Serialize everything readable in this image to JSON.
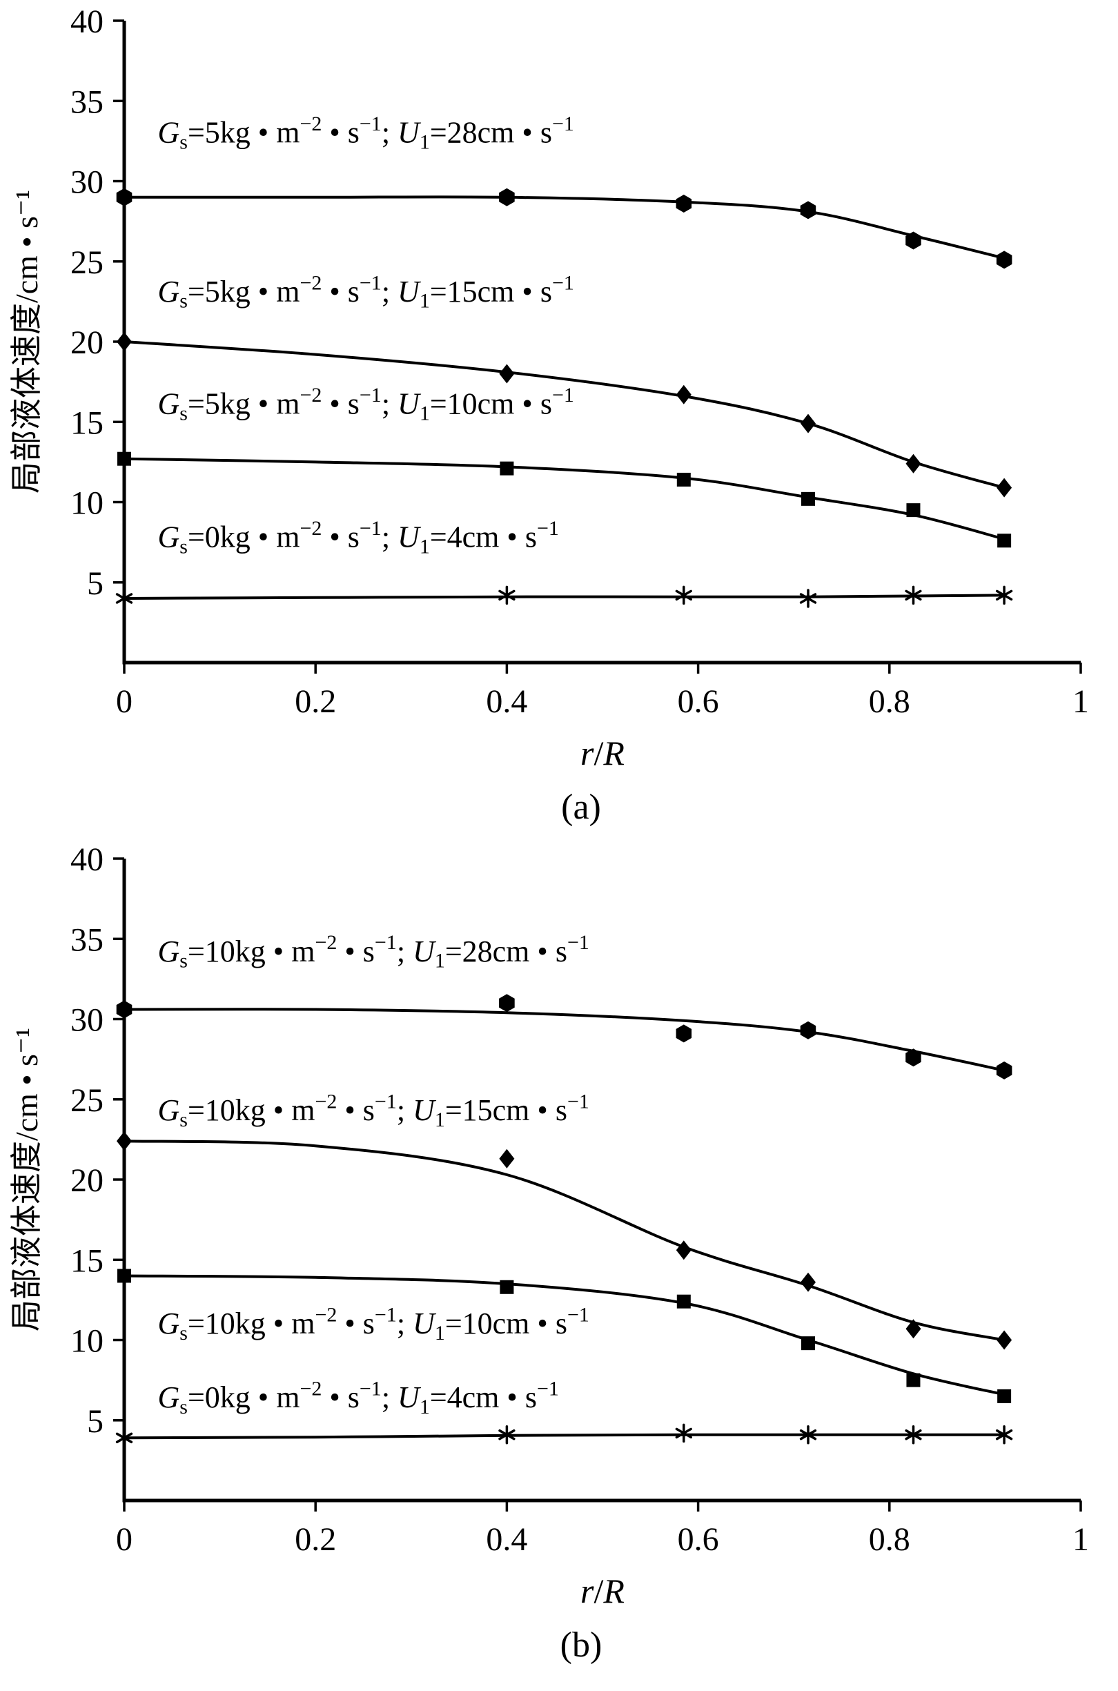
{
  "figure": {
    "background": "#ffffff",
    "ink": "#000000"
  },
  "chart_data": [
    {
      "type": "line",
      "panel": "(a)",
      "xlabel": "r/R",
      "xlabel_parts": [
        [
          "r",
          "i"
        ],
        [
          "/",
          "n"
        ],
        [
          "R",
          "i"
        ]
      ],
      "ylabel": "局部液体速度/cm • s⁻¹",
      "xlim": [
        0,
        1
      ],
      "ylim": [
        0,
        40
      ],
      "xtick_values": [
        0,
        0.2,
        0.4,
        0.6,
        0.8,
        1
      ],
      "xtick_labels": [
        "0",
        "0.2",
        "0.4",
        "0.6",
        "0.8",
        "1"
      ],
      "ytick_values": [
        5,
        10,
        15,
        20,
        25,
        30,
        35,
        40
      ],
      "ytick_labels": [
        "5",
        "10",
        "15",
        "20",
        "25",
        "30",
        "35",
        "40"
      ],
      "x": [
        0,
        0.4,
        0.585,
        0.715,
        0.825,
        0.92
      ],
      "grid": false,
      "legend": "inline-labels",
      "series": [
        {
          "name": "Gₛ=5kg • m⁻² • s⁻¹; U₁=28cm • s⁻¹",
          "marker": "hexagon",
          "values": [
            29.0,
            29.0,
            28.6,
            28.2,
            26.3,
            25.1
          ],
          "curve_x": [
            0,
            0.2,
            0.4,
            0.585,
            0.715,
            0.825,
            0.92
          ],
          "curve_y": [
            29.0,
            29.0,
            29.0,
            28.7,
            28.1,
            26.6,
            25.2
          ],
          "label_x": 0.035,
          "label_y": 32.4,
          "label_parts": [
            [
              "G",
              "i"
            ],
            [
              "s",
              "sub"
            ],
            [
              "=5kg",
              "n"
            ],
            [
              " • ",
              "n"
            ],
            [
              "m",
              "n"
            ],
            [
              "−2",
              "sup"
            ],
            [
              " • ",
              "n"
            ],
            [
              "s",
              "n"
            ],
            [
              "−1",
              "sup"
            ],
            [
              "; ",
              "n"
            ],
            [
              "U",
              "i"
            ],
            [
              "1",
              "sub"
            ],
            [
              "=28cm",
              "n"
            ],
            [
              " • ",
              "n"
            ],
            [
              "s",
              "n"
            ],
            [
              "−1",
              "sup"
            ]
          ]
        },
        {
          "name": "Gₛ=5kg • m⁻² • s⁻¹; U₁=15cm • s⁻¹",
          "marker": "diamond",
          "values": [
            20.0,
            18.0,
            16.7,
            14.9,
            12.4,
            10.9
          ],
          "curve_x": [
            0,
            0.2,
            0.4,
            0.585,
            0.715,
            0.825,
            0.92
          ],
          "curve_y": [
            20.0,
            19.2,
            18.1,
            16.6,
            14.9,
            12.5,
            10.9
          ],
          "label_x": 0.035,
          "label_y": 22.5,
          "label_parts": [
            [
              "G",
              "i"
            ],
            [
              "s",
              "sub"
            ],
            [
              "=5kg",
              "n"
            ],
            [
              " • ",
              "n"
            ],
            [
              "m",
              "n"
            ],
            [
              "−2",
              "sup"
            ],
            [
              " • ",
              "n"
            ],
            [
              "s",
              "n"
            ],
            [
              "−1",
              "sup"
            ],
            [
              "; ",
              "n"
            ],
            [
              "U",
              "i"
            ],
            [
              "1",
              "sub"
            ],
            [
              "=15cm",
              "n"
            ],
            [
              " • ",
              "n"
            ],
            [
              "s",
              "n"
            ],
            [
              "−1",
              "sup"
            ]
          ]
        },
        {
          "name": "Gₛ=5kg • m⁻² • s⁻¹; U₁=10cm • s⁻¹",
          "marker": "square",
          "values": [
            12.7,
            12.1,
            11.4,
            10.2,
            9.5,
            7.6
          ],
          "curve_x": [
            0,
            0.2,
            0.4,
            0.585,
            0.715,
            0.825,
            0.92
          ],
          "curve_y": [
            12.7,
            12.5,
            12.2,
            11.5,
            10.3,
            9.2,
            7.7
          ],
          "label_x": 0.035,
          "label_y": 15.5,
          "label_parts": [
            [
              "G",
              "i"
            ],
            [
              "s",
              "sub"
            ],
            [
              "=5kg",
              "n"
            ],
            [
              " • ",
              "n"
            ],
            [
              "m",
              "n"
            ],
            [
              "−2",
              "sup"
            ],
            [
              " • ",
              "n"
            ],
            [
              "s",
              "n"
            ],
            [
              "−1",
              "sup"
            ],
            [
              "; ",
              "n"
            ],
            [
              "U",
              "i"
            ],
            [
              "1",
              "sub"
            ],
            [
              "=10cm",
              "n"
            ],
            [
              " • ",
              "n"
            ],
            [
              "s",
              "n"
            ],
            [
              "−1",
              "sup"
            ]
          ]
        },
        {
          "name": "Gₛ=0kg • m⁻² • s⁻¹; U₁=4cm • s⁻¹",
          "marker": "asterisk",
          "values": [
            4.0,
            4.2,
            4.2,
            4.0,
            4.2,
            4.2
          ],
          "curve_x": [
            0,
            0.2,
            0.4,
            0.585,
            0.715,
            0.825,
            0.92
          ],
          "curve_y": [
            4.0,
            4.05,
            4.1,
            4.1,
            4.1,
            4.15,
            4.2
          ],
          "label_x": 0.035,
          "label_y": 7.2,
          "label_parts": [
            [
              "G",
              "i"
            ],
            [
              "s",
              "sub"
            ],
            [
              "=0kg",
              "n"
            ],
            [
              " • ",
              "n"
            ],
            [
              "m",
              "n"
            ],
            [
              "−2",
              "sup"
            ],
            [
              " • ",
              "n"
            ],
            [
              "s",
              "n"
            ],
            [
              "−1",
              "sup"
            ],
            [
              "; ",
              "n"
            ],
            [
              "U",
              "i"
            ],
            [
              "1",
              "sub"
            ],
            [
              "=4cm",
              "n"
            ],
            [
              " • ",
              "n"
            ],
            [
              "s",
              "n"
            ],
            [
              "−1",
              "sup"
            ]
          ]
        }
      ]
    },
    {
      "type": "line",
      "panel": "(b)",
      "xlabel": "r/R",
      "xlabel_parts": [
        [
          "r",
          "i"
        ],
        [
          "/",
          "n"
        ],
        [
          "R",
          "i"
        ]
      ],
      "ylabel": "局部液体速度/cm • s⁻¹",
      "xlim": [
        0,
        1
      ],
      "ylim": [
        0,
        40
      ],
      "xtick_values": [
        0,
        0.2,
        0.4,
        0.6,
        0.8,
        1
      ],
      "xtick_labels": [
        "0",
        "0.2",
        "0.4",
        "0.6",
        "0.8",
        "1"
      ],
      "ytick_values": [
        5,
        10,
        15,
        20,
        25,
        30,
        35,
        40
      ],
      "ytick_labels": [
        "5",
        "10",
        "15",
        "20",
        "25",
        "30",
        "35",
        "40"
      ],
      "x": [
        0,
        0.4,
        0.585,
        0.715,
        0.825,
        0.92
      ],
      "grid": false,
      "legend": "inline-labels",
      "series": [
        {
          "name": "Gₛ=10kg • m⁻² • s⁻¹; U₁=28cm • s⁻¹",
          "marker": "hexagon",
          "values": [
            30.6,
            31.0,
            29.1,
            29.3,
            27.6,
            26.8
          ],
          "curve_x": [
            0,
            0.2,
            0.4,
            0.585,
            0.715,
            0.825,
            0.92
          ],
          "curve_y": [
            30.6,
            30.6,
            30.4,
            29.9,
            29.2,
            28.0,
            26.8
          ],
          "label_x": 0.035,
          "label_y": 33.6,
          "label_parts": [
            [
              "G",
              "i"
            ],
            [
              "s",
              "sub"
            ],
            [
              "=10kg",
              "n"
            ],
            [
              " • ",
              "n"
            ],
            [
              "m",
              "n"
            ],
            [
              "−2",
              "sup"
            ],
            [
              " • ",
              "n"
            ],
            [
              "s",
              "n"
            ],
            [
              "−1",
              "sup"
            ],
            [
              "; ",
              "n"
            ],
            [
              "U",
              "i"
            ],
            [
              "1",
              "sub"
            ],
            [
              "=28cm",
              "n"
            ],
            [
              " • ",
              "n"
            ],
            [
              "s",
              "n"
            ],
            [
              "−1",
              "sup"
            ]
          ]
        },
        {
          "name": "Gₛ=10kg • m⁻² • s⁻¹; U₁=15cm • s⁻¹",
          "marker": "diamond",
          "values": [
            22.4,
            21.3,
            15.6,
            13.6,
            10.7,
            10.0
          ],
          "curve_x": [
            0,
            0.2,
            0.4,
            0.585,
            0.715,
            0.825,
            0.92
          ],
          "curve_y": [
            22.4,
            22.1,
            20.3,
            15.8,
            13.4,
            11.1,
            10.0
          ],
          "label_x": 0.035,
          "label_y": 23.7,
          "label_parts": [
            [
              "G",
              "i"
            ],
            [
              "s",
              "sub"
            ],
            [
              "=10kg",
              "n"
            ],
            [
              " • ",
              "n"
            ],
            [
              "m",
              "n"
            ],
            [
              "−2",
              "sup"
            ],
            [
              " • ",
              "n"
            ],
            [
              "s",
              "n"
            ],
            [
              "−1",
              "sup"
            ],
            [
              "; ",
              "n"
            ],
            [
              "U",
              "i"
            ],
            [
              "1",
              "sub"
            ],
            [
              "=15cm",
              "n"
            ],
            [
              " • ",
              "n"
            ],
            [
              "s",
              "n"
            ],
            [
              "−1",
              "sup"
            ]
          ]
        },
        {
          "name": "Gₛ=10kg • m⁻² • s⁻¹; U₁=10cm • s⁻¹",
          "marker": "square",
          "values": [
            14.0,
            13.3,
            12.4,
            9.8,
            7.5,
            6.5
          ],
          "curve_x": [
            0,
            0.2,
            0.4,
            0.585,
            0.715,
            0.825,
            0.92
          ],
          "curve_y": [
            14.0,
            13.9,
            13.5,
            12.3,
            10.0,
            7.9,
            6.6
          ],
          "label_x": 0.035,
          "label_y": 10.4,
          "label_parts": [
            [
              "G",
              "i"
            ],
            [
              "s",
              "sub"
            ],
            [
              "=10kg",
              "n"
            ],
            [
              " • ",
              "n"
            ],
            [
              "m",
              "n"
            ],
            [
              "−2",
              "sup"
            ],
            [
              " • ",
              "n"
            ],
            [
              "s",
              "n"
            ],
            [
              "−1",
              "sup"
            ],
            [
              "; ",
              "n"
            ],
            [
              "U",
              "i"
            ],
            [
              "1",
              "sub"
            ],
            [
              "=10cm",
              "n"
            ],
            [
              " • ",
              "n"
            ],
            [
              "s",
              "n"
            ],
            [
              "−1",
              "sup"
            ]
          ]
        },
        {
          "name": "Gₛ=0kg • m⁻² • s⁻¹; U₁=4cm • s⁻¹",
          "marker": "asterisk",
          "values": [
            3.9,
            4.1,
            4.2,
            4.1,
            4.1,
            4.1
          ],
          "curve_x": [
            0,
            0.2,
            0.4,
            0.585,
            0.715,
            0.825,
            0.92
          ],
          "curve_y": [
            3.9,
            3.95,
            4.05,
            4.1,
            4.1,
            4.1,
            4.1
          ],
          "label_x": 0.035,
          "label_y": 5.8,
          "label_parts": [
            [
              "G",
              "i"
            ],
            [
              "s",
              "sub"
            ],
            [
              "=0kg",
              "n"
            ],
            [
              " • ",
              "n"
            ],
            [
              "m",
              "n"
            ],
            [
              "−2",
              "sup"
            ],
            [
              " • ",
              "n"
            ],
            [
              "s",
              "n"
            ],
            [
              "−1",
              "sup"
            ],
            [
              "; ",
              "n"
            ],
            [
              "U",
              "i"
            ],
            [
              "1",
              "sub"
            ],
            [
              "=4cm",
              "n"
            ],
            [
              " • ",
              "n"
            ],
            [
              "s",
              "n"
            ],
            [
              "−1",
              "sup"
            ]
          ]
        }
      ]
    }
  ]
}
